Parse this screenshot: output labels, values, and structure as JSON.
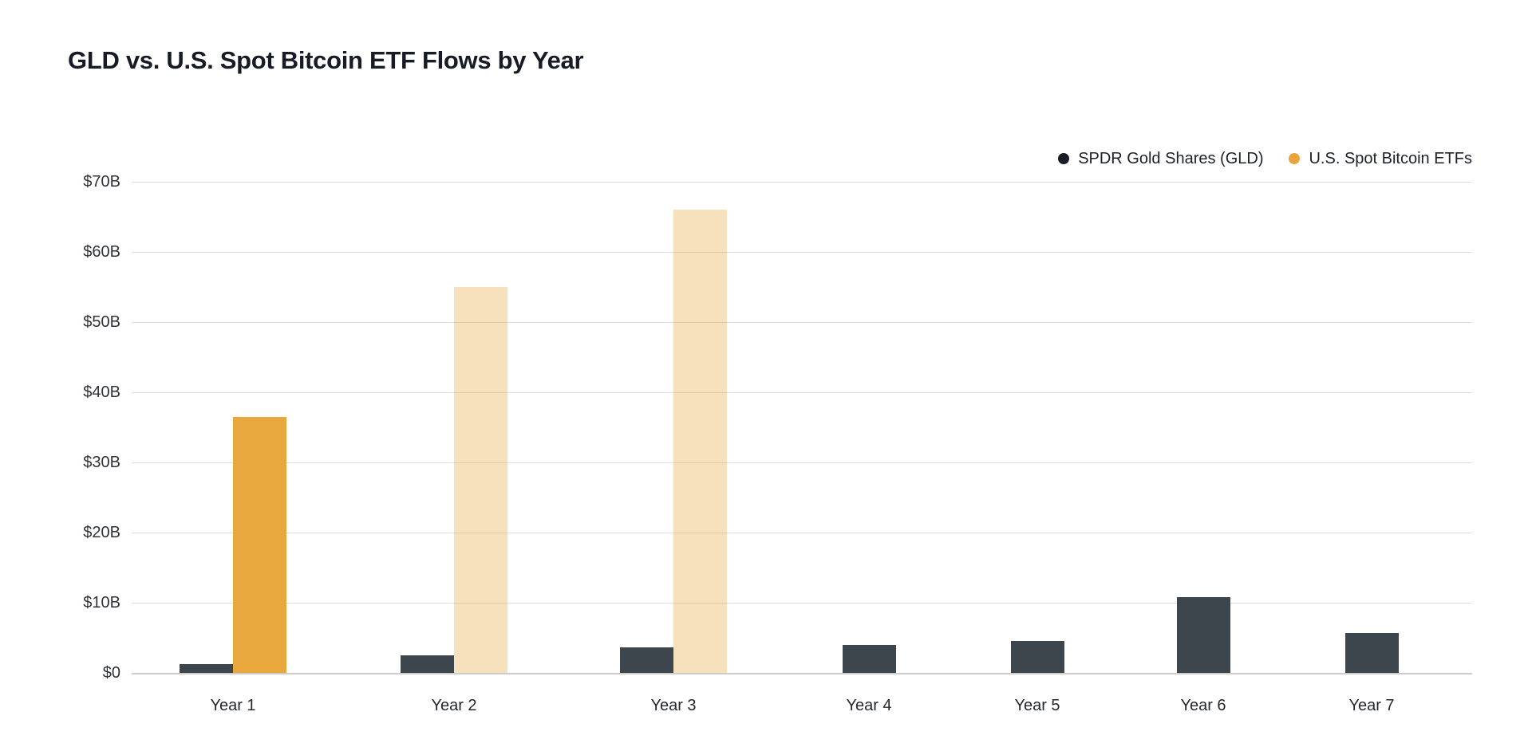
{
  "chart": {
    "title": "GLD vs. U.S. Spot Bitcoin ETF Flows by Year"
  },
  "legend": [
    {
      "id": "gld",
      "label": "SPDR Gold Shares (GLD)",
      "swatch_color": "#181c23",
      "swatch_icon": "circle"
    },
    {
      "id": "btc",
      "label": "U.S. Spot Bitcoin ETFs",
      "swatch_color": "#e9a43c",
      "swatch_icon": "circle"
    }
  ],
  "chart_data": {
    "type": "bar",
    "title": "GLD vs. U.S. Spot Bitcoin ETF Flows by Year",
    "categories": [
      "Year 1",
      "Year 2",
      "Year 3",
      "Year 4",
      "Year 5",
      "Year 6",
      "Year 7"
    ],
    "series": [
      {
        "name": "SPDR Gold Shares (GLD)",
        "color": "#3e464d",
        "values": [
          1.3,
          2.5,
          3.6,
          4.0,
          4.5,
          10.8,
          5.7
        ],
        "faded": [
          false,
          false,
          false,
          false,
          false,
          false,
          false
        ]
      },
      {
        "name": "U.S. Spot Bitcoin ETFs",
        "color": "#e9a83e",
        "values": [
          36.5,
          55,
          66,
          null,
          null,
          null,
          null
        ],
        "faded": [
          false,
          true,
          true,
          false,
          false,
          false,
          false
        ],
        "faded_opacity": 0.34
      }
    ],
    "unit": "USD billions",
    "xlabel": "",
    "ylabel": "",
    "ylim": [
      0,
      70
    ],
    "y_ticks": [
      {
        "value": 0,
        "label": "$0"
      },
      {
        "value": 10,
        "label": "$10B"
      },
      {
        "value": 20,
        "label": "$20B"
      },
      {
        "value": 30,
        "label": "$30B"
      },
      {
        "value": 40,
        "label": "$40B"
      },
      {
        "value": 50,
        "label": "$50B"
      },
      {
        "value": 60,
        "label": "$60B"
      },
      {
        "value": 70,
        "label": "$70B"
      }
    ],
    "grid": "horizontal",
    "legend_position": "top-right"
  },
  "colors": {
    "background": "#ffffff",
    "gridline": "#dedede",
    "baseline": "#cccccc",
    "title_text": "#161b26",
    "axis_text": "#2f3338"
  }
}
